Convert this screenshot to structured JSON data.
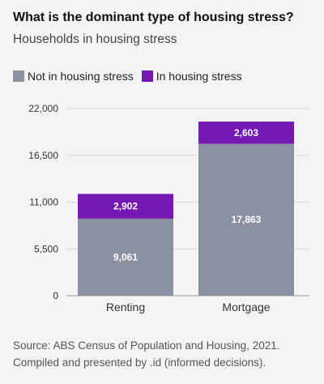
{
  "chart_data": {
    "type": "bar",
    "stacked": true,
    "title": "What is the dominant type of housing stress?",
    "subtitle": "Households in housing stress",
    "categories": [
      "Renting",
      "Mortgage"
    ],
    "series": [
      {
        "name": "Not in housing stress",
        "color": "#8c91a1",
        "values": [
          9061,
          17863
        ]
      },
      {
        "name": "In housing stress",
        "color": "#7417b3",
        "values": [
          2902,
          2603
        ]
      }
    ],
    "ylim": [
      0,
      22000
    ],
    "yticks": [
      0,
      5500,
      11000,
      16500,
      22000
    ],
    "ytick_labels": [
      "0",
      "5,500",
      "11,000",
      "16,500",
      "22,000"
    ],
    "grid": true,
    "legend_position": "top-left",
    "xlabel": "",
    "ylabel": ""
  },
  "source": {
    "line1": "Source: ABS Census of Population and Housing, 2021.",
    "line2": "Compiled and presented by .id (informed decisions)."
  }
}
